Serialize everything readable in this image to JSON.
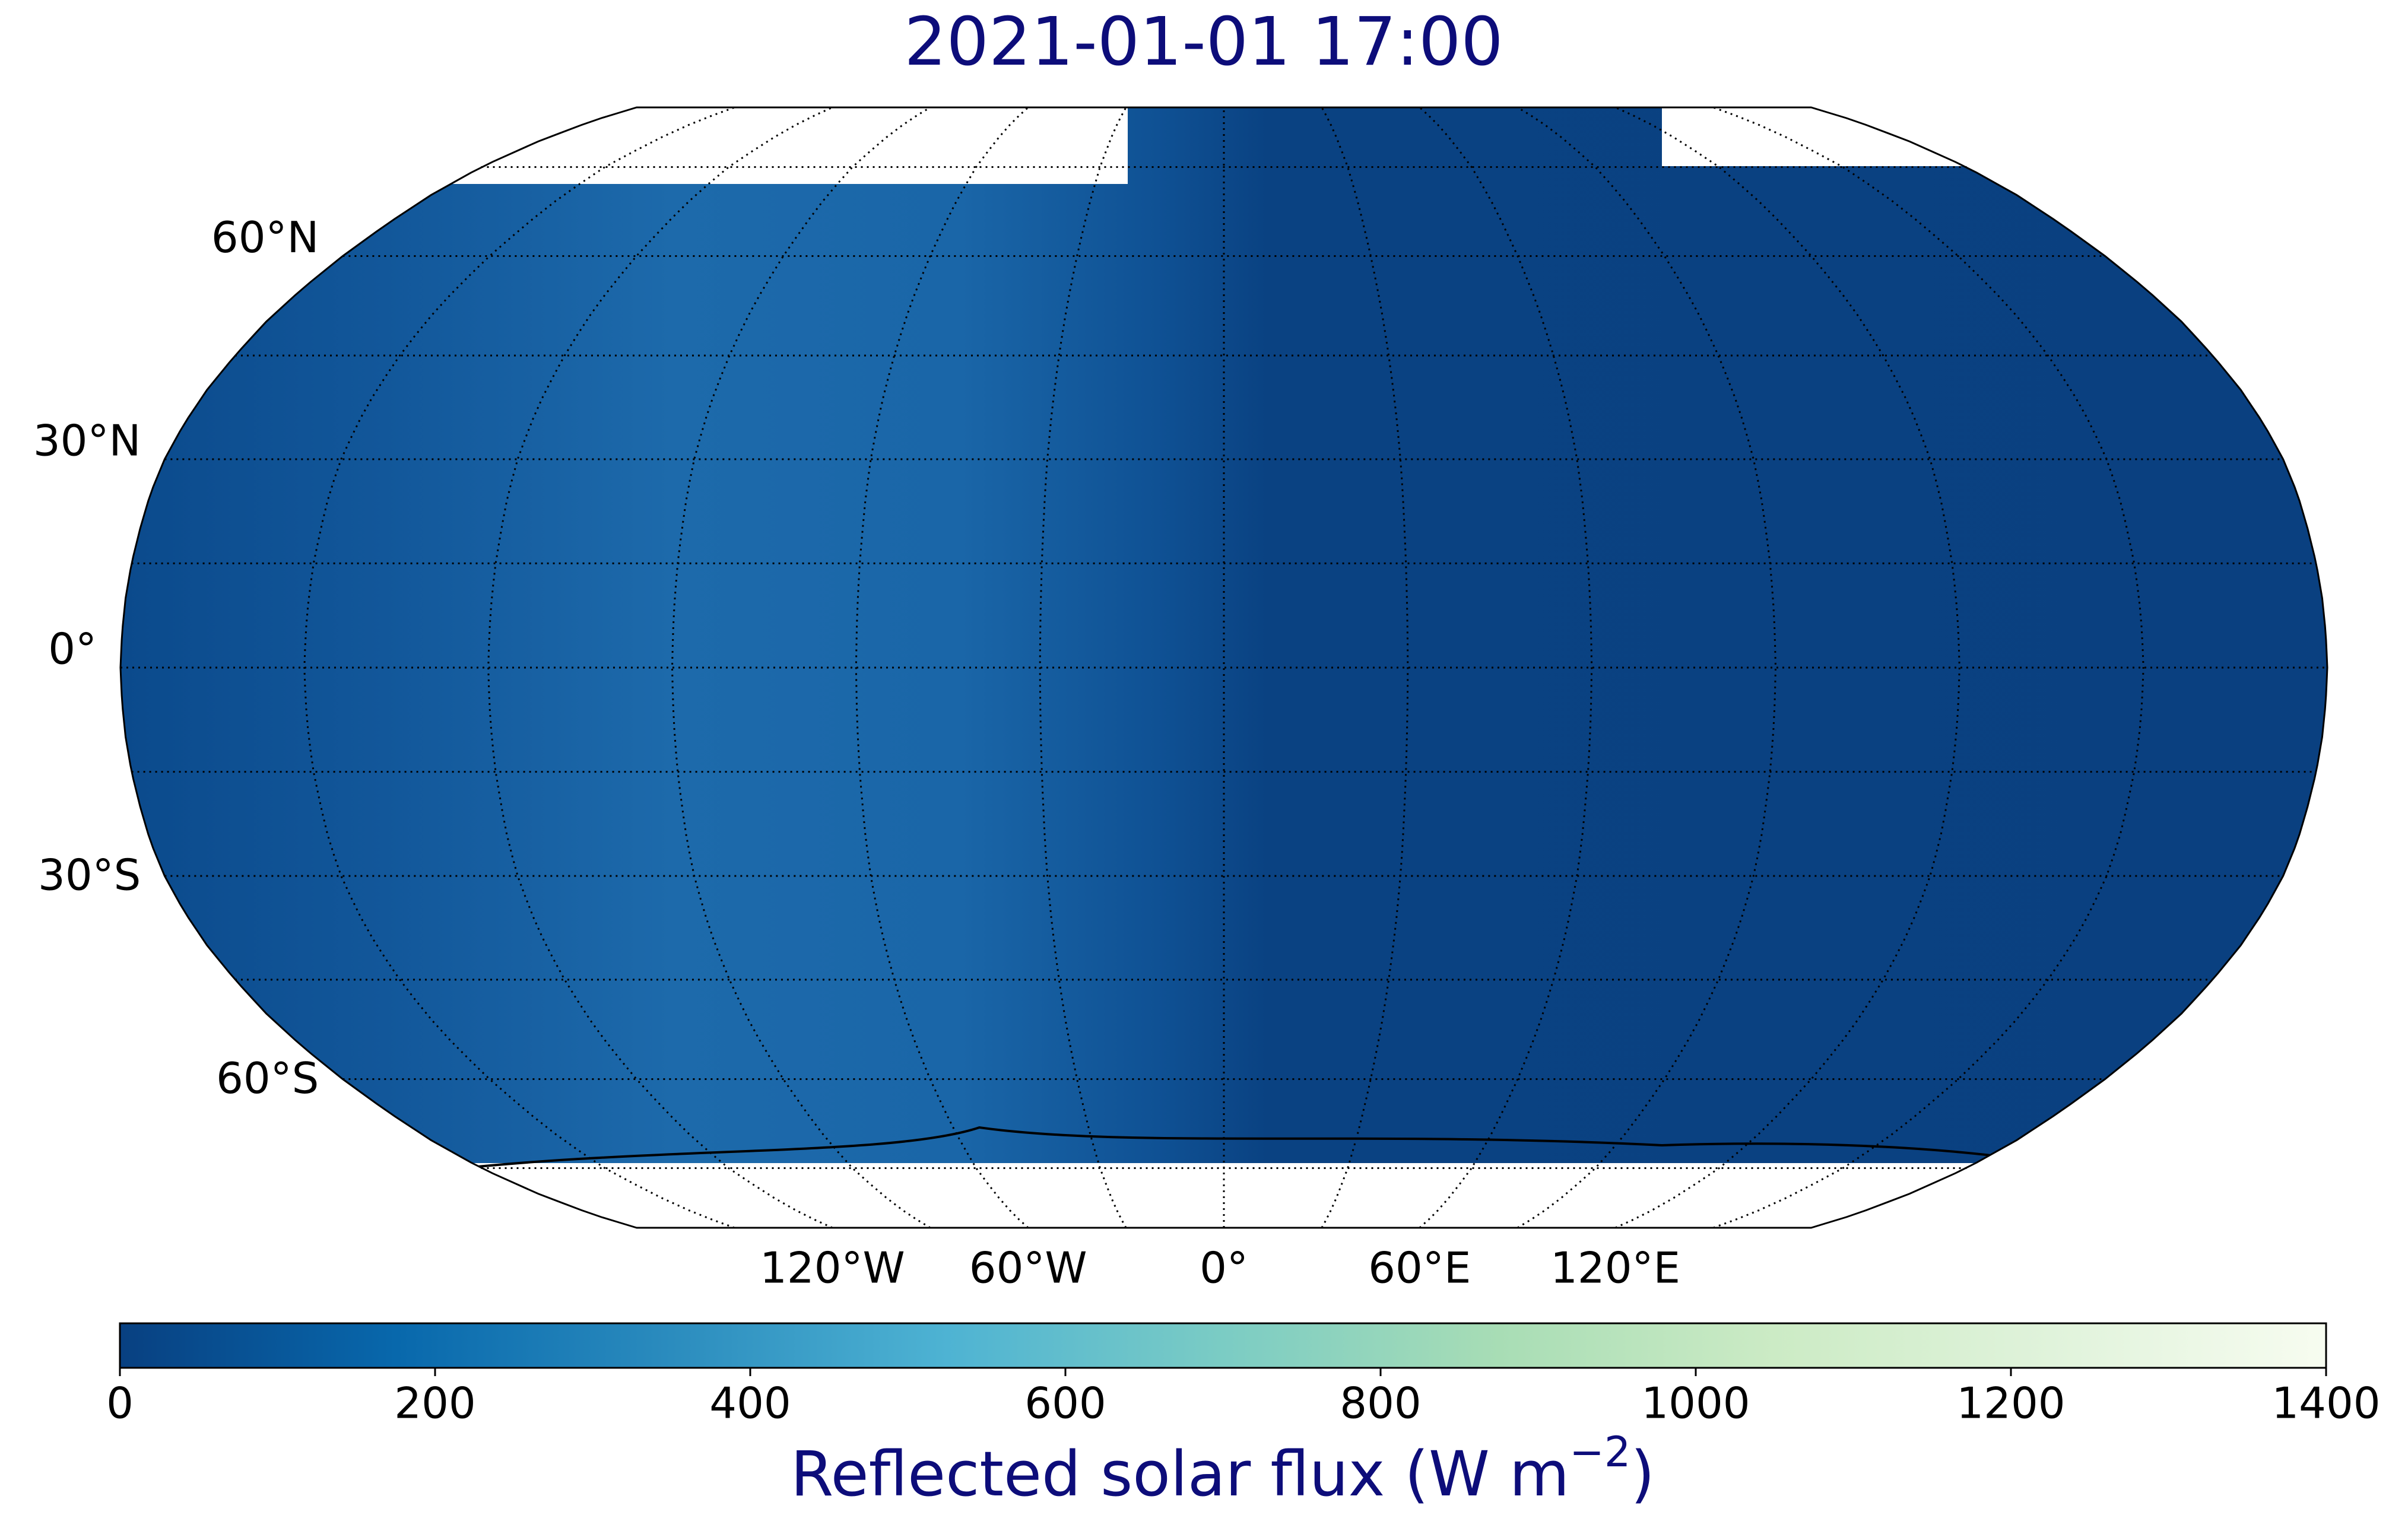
{
  "title": "2021-01-01 17:00",
  "lat_ticks": [
    {
      "value": 60,
      "label": "60°N"
    },
    {
      "value": 30,
      "label": "30°N"
    },
    {
      "value": 0,
      "label": "0°"
    },
    {
      "value": -30,
      "label": "30°S"
    },
    {
      "value": -60,
      "label": "60°S"
    }
  ],
  "lon_ticks": [
    {
      "value": -120,
      "label": "120°W"
    },
    {
      "value": -60,
      "label": "60°W"
    },
    {
      "value": 0,
      "label": "0°"
    },
    {
      "value": 60,
      "label": "60°E"
    },
    {
      "value": 120,
      "label": "120°E"
    }
  ],
  "colorbar": {
    "lim": [
      0,
      1400
    ],
    "ticks": [
      0,
      200,
      400,
      600,
      800,
      1000,
      1200,
      1400
    ],
    "colors": [
      "#084081",
      "#0868ac",
      "#2b8cbe",
      "#4eb3d3",
      "#7bccc4",
      "#a8ddb5",
      "#ccebc5",
      "#e0f3db",
      "#f7fcf0"
    ],
    "label": "Reflected solar flux (W m",
    "label_superscript": "−2",
    "label_end": ")"
  }
}
